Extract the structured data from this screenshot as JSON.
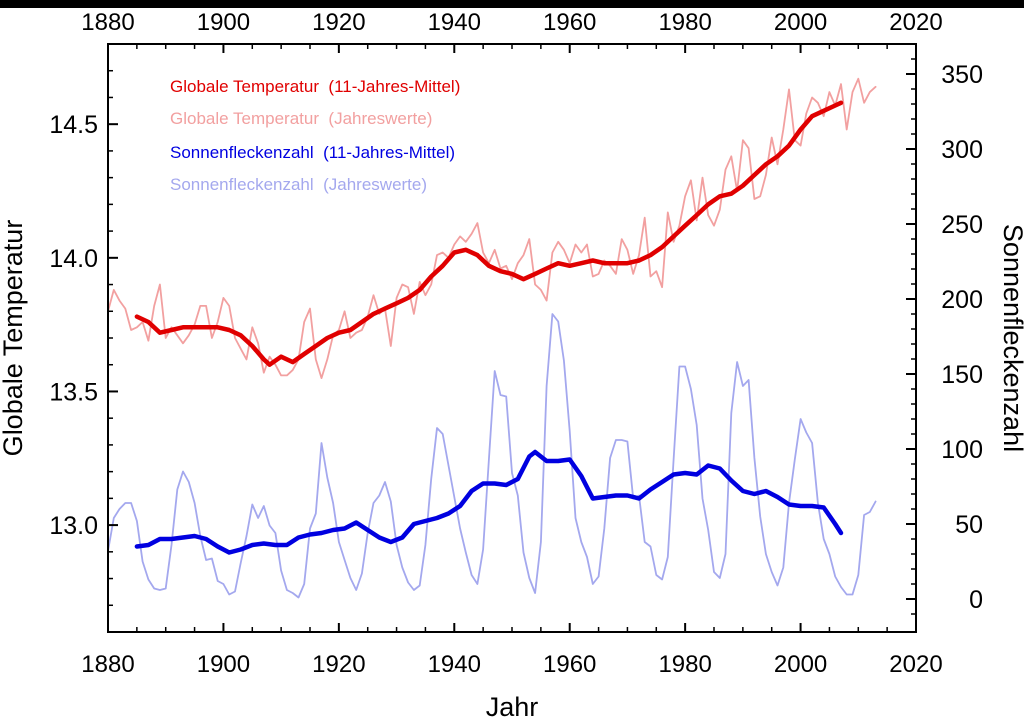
{
  "chart_data": {
    "type": "line",
    "xlabel": "Jahr",
    "ylabel_left": "Globale Temperatur",
    "ylabel_right": "Sonnenfleckenzahl",
    "x_range": [
      1880,
      2020
    ],
    "x_ticks": [
      "1880",
      "1900",
      "1920",
      "1940",
      "1960",
      "1980",
      "2000",
      "2020"
    ],
    "y_left_range": [
      12.6,
      14.8
    ],
    "y_left_ticks": [
      "13.0",
      "13.5",
      "14.0",
      "14.5"
    ],
    "y_right_range": [
      -22,
      370
    ],
    "y_right_ticks": [
      "0",
      "50",
      "100",
      "150",
      "200",
      "250",
      "300",
      "350"
    ],
    "legend_position": "top-left",
    "series": [
      {
        "name": "Globale Temperatur  (11-Jahres-Mittel)",
        "axis": "left",
        "color": "#e00000",
        "style": "thick",
        "x": [
          1885,
          1887,
          1889,
          1891,
          1893,
          1895,
          1897,
          1899,
          1901,
          1903,
          1905,
          1907,
          1908,
          1910,
          1912,
          1914,
          1916,
          1918,
          1920,
          1922,
          1924,
          1926,
          1928,
          1930,
          1932,
          1934,
          1936,
          1938,
          1940,
          1942,
          1944,
          1946,
          1948,
          1950,
          1952,
          1954,
          1956,
          1958,
          1960,
          1962,
          1964,
          1966,
          1968,
          1970,
          1972,
          1974,
          1976,
          1978,
          1980,
          1982,
          1984,
          1986,
          1988,
          1990,
          1992,
          1994,
          1996,
          1998,
          2000,
          2002,
          2004,
          2006,
          2007
        ],
        "y": [
          13.78,
          13.76,
          13.72,
          13.73,
          13.74,
          13.74,
          13.74,
          13.74,
          13.73,
          13.71,
          13.67,
          13.62,
          13.6,
          13.63,
          13.61,
          13.64,
          13.67,
          13.7,
          13.72,
          13.73,
          13.76,
          13.79,
          13.81,
          13.83,
          13.85,
          13.88,
          13.93,
          13.97,
          14.02,
          14.03,
          14.01,
          13.97,
          13.95,
          13.94,
          13.92,
          13.94,
          13.96,
          13.98,
          13.97,
          13.98,
          13.99,
          13.98,
          13.98,
          13.98,
          13.99,
          14.01,
          14.04,
          14.08,
          14.12,
          14.16,
          14.2,
          14.23,
          14.24,
          14.27,
          14.31,
          14.35,
          14.38,
          14.42,
          14.48,
          14.53,
          14.55,
          14.57,
          14.58
        ]
      },
      {
        "name": "Globale Temperatur  (Jahreswerte)",
        "axis": "left",
        "color": "#f2a0a0",
        "style": "thin",
        "x": [
          1880,
          1881,
          1882,
          1883,
          1884,
          1885,
          1886,
          1887,
          1888,
          1889,
          1890,
          1891,
          1892,
          1893,
          1894,
          1895,
          1896,
          1897,
          1898,
          1899,
          1900,
          1901,
          1902,
          1903,
          1904,
          1905,
          1906,
          1907,
          1908,
          1909,
          1910,
          1911,
          1912,
          1913,
          1914,
          1915,
          1916,
          1917,
          1918,
          1919,
          1920,
          1921,
          1922,
          1923,
          1924,
          1925,
          1926,
          1927,
          1928,
          1929,
          1930,
          1931,
          1932,
          1933,
          1934,
          1935,
          1936,
          1937,
          1938,
          1939,
          1940,
          1941,
          1942,
          1943,
          1944,
          1945,
          1946,
          1947,
          1948,
          1949,
          1950,
          1951,
          1952,
          1953,
          1954,
          1955,
          1956,
          1957,
          1958,
          1959,
          1960,
          1961,
          1962,
          1963,
          1964,
          1965,
          1966,
          1967,
          1968,
          1969,
          1970,
          1971,
          1972,
          1973,
          1974,
          1975,
          1976,
          1977,
          1978,
          1979,
          1980,
          1981,
          1982,
          1983,
          1984,
          1985,
          1986,
          1987,
          1988,
          1989,
          1990,
          1991,
          1992,
          1993,
          1994,
          1995,
          1996,
          1997,
          1998,
          1999,
          2000,
          2001,
          2002,
          2003,
          2004,
          2005,
          2006,
          2007,
          2008,
          2009,
          2010,
          2011,
          2012,
          2013
        ],
        "y": [
          13.8,
          13.88,
          13.84,
          13.81,
          13.73,
          13.74,
          13.76,
          13.69,
          13.82,
          13.9,
          13.7,
          13.74,
          13.71,
          13.68,
          13.71,
          13.75,
          13.82,
          13.82,
          13.7,
          13.76,
          13.85,
          13.82,
          13.7,
          13.66,
          13.62,
          13.74,
          13.68,
          13.57,
          13.63,
          13.6,
          13.56,
          13.56,
          13.58,
          13.62,
          13.76,
          13.81,
          13.62,
          13.55,
          13.62,
          13.71,
          13.73,
          13.8,
          13.7,
          13.72,
          13.73,
          13.78,
          13.86,
          13.79,
          13.81,
          13.67,
          13.85,
          13.9,
          13.89,
          13.79,
          13.91,
          13.86,
          13.9,
          14.01,
          14.02,
          14.0,
          14.05,
          14.08,
          14.06,
          14.09,
          14.13,
          14.02,
          13.98,
          14.03,
          13.96,
          13.97,
          13.92,
          13.98,
          14.01,
          14.07,
          13.9,
          13.88,
          13.84,
          14.02,
          14.06,
          14.03,
          13.98,
          14.05,
          14.02,
          14.05,
          13.93,
          13.94,
          13.99,
          13.97,
          13.94,
          14.07,
          14.03,
          13.94,
          14.01,
          14.15,
          13.93,
          13.95,
          13.89,
          14.17,
          14.06,
          14.12,
          14.23,
          14.29,
          14.14,
          14.3,
          14.16,
          14.12,
          14.18,
          14.33,
          14.38,
          14.25,
          14.44,
          14.41,
          14.22,
          14.23,
          14.31,
          14.45,
          14.35,
          14.48,
          14.63,
          14.44,
          14.42,
          14.54,
          14.6,
          14.58,
          14.53,
          14.62,
          14.57,
          14.65,
          14.48,
          14.62,
          14.67,
          14.58,
          14.62,
          14.64
        ]
      },
      {
        "name": "Sonnenfleckenzahl  (11-Jahres-Mittel)",
        "axis": "right",
        "color": "#0000e0",
        "style": "thick",
        "x": [
          1885,
          1887,
          1889,
          1891,
          1893,
          1895,
          1897,
          1899,
          1901,
          1903,
          1905,
          1907,
          1909,
          1911,
          1913,
          1915,
          1917,
          1919,
          1921,
          1923,
          1925,
          1927,
          1929,
          1931,
          1933,
          1935,
          1937,
          1939,
          1941,
          1943,
          1945,
          1947,
          1949,
          1951,
          1953,
          1954,
          1956,
          1958,
          1960,
          1962,
          1964,
          1966,
          1968,
          1970,
          1972,
          1974,
          1976,
          1978,
          1980,
          1982,
          1984,
          1986,
          1988,
          1990,
          1992,
          1994,
          1996,
          1998,
          2000,
          2002,
          2004,
          2006,
          2007
        ],
        "y": [
          35,
          36,
          40,
          40,
          41,
          42,
          40,
          35,
          31,
          33,
          36,
          37,
          36,
          36,
          41,
          43,
          44,
          46,
          47,
          51,
          46,
          41,
          38,
          41,
          50,
          52,
          54,
          57,
          62,
          72,
          77,
          77,
          76,
          80,
          95,
          98,
          92,
          92,
          93,
          82,
          67,
          68,
          69,
          69,
          67,
          73,
          78,
          83,
          84,
          83,
          89,
          87,
          79,
          72,
          70,
          72,
          68,
          63,
          62,
          62,
          61,
          50,
          44
        ]
      },
      {
        "name": "Sonnenfleckenzahl  (Jahreswerte)",
        "axis": "right",
        "color": "#a4a8ee",
        "style": "thin",
        "x": [
          1880,
          1881,
          1882,
          1883,
          1884,
          1885,
          1886,
          1887,
          1888,
          1889,
          1890,
          1891,
          1892,
          1893,
          1894,
          1895,
          1896,
          1897,
          1898,
          1899,
          1900,
          1901,
          1902,
          1903,
          1904,
          1905,
          1906,
          1907,
          1908,
          1909,
          1910,
          1911,
          1912,
          1913,
          1914,
          1915,
          1916,
          1917,
          1918,
          1919,
          1920,
          1921,
          1922,
          1923,
          1924,
          1925,
          1926,
          1927,
          1928,
          1929,
          1930,
          1931,
          1932,
          1933,
          1934,
          1935,
          1936,
          1937,
          1938,
          1939,
          1940,
          1941,
          1942,
          1943,
          1944,
          1945,
          1946,
          1947,
          1948,
          1949,
          1950,
          1951,
          1952,
          1953,
          1954,
          1955,
          1956,
          1957,
          1958,
          1959,
          1960,
          1961,
          1962,
          1963,
          1964,
          1965,
          1966,
          1967,
          1968,
          1969,
          1970,
          1971,
          1972,
          1973,
          1974,
          1975,
          1976,
          1977,
          1978,
          1979,
          1980,
          1981,
          1982,
          1983,
          1984,
          1985,
          1986,
          1987,
          1988,
          1989,
          1990,
          1991,
          1992,
          1993,
          1994,
          1995,
          1996,
          1997,
          1998,
          1999,
          2000,
          2001,
          2002,
          2003,
          2004,
          2005,
          2006,
          2007,
          2008,
          2009,
          2010,
          2011,
          2012,
          2013
        ],
        "y": [
          32,
          54,
          60,
          64,
          64,
          52,
          25,
          13,
          7,
          6,
          7,
          36,
          73,
          85,
          78,
          64,
          42,
          26,
          27,
          12,
          10,
          3,
          5,
          24,
          42,
          63,
          54,
          62,
          49,
          44,
          19,
          6,
          4,
          1,
          10,
          47,
          57,
          104,
          81,
          64,
          38,
          26,
          14,
          6,
          17,
          44,
          64,
          69,
          78,
          65,
          36,
          21,
          11,
          6,
          9,
          36,
          80,
          114,
          110,
          89,
          68,
          47,
          31,
          16,
          10,
          33,
          93,
          152,
          136,
          135,
          84,
          69,
          31,
          14,
          4,
          38,
          142,
          190,
          185,
          159,
          112,
          54,
          38,
          28,
          10,
          15,
          47,
          94,
          106,
          106,
          105,
          67,
          69,
          38,
          35,
          16,
          13,
          28,
          93,
          155,
          155,
          140,
          116,
          67,
          46,
          18,
          14,
          30,
          124,
          158,
          142,
          146,
          94,
          55,
          30,
          18,
          9,
          21,
          64,
          93,
          120,
          111,
          104,
          64,
          40,
          30,
          15,
          8,
          3,
          3,
          16,
          56,
          58,
          65
        ]
      }
    ]
  }
}
